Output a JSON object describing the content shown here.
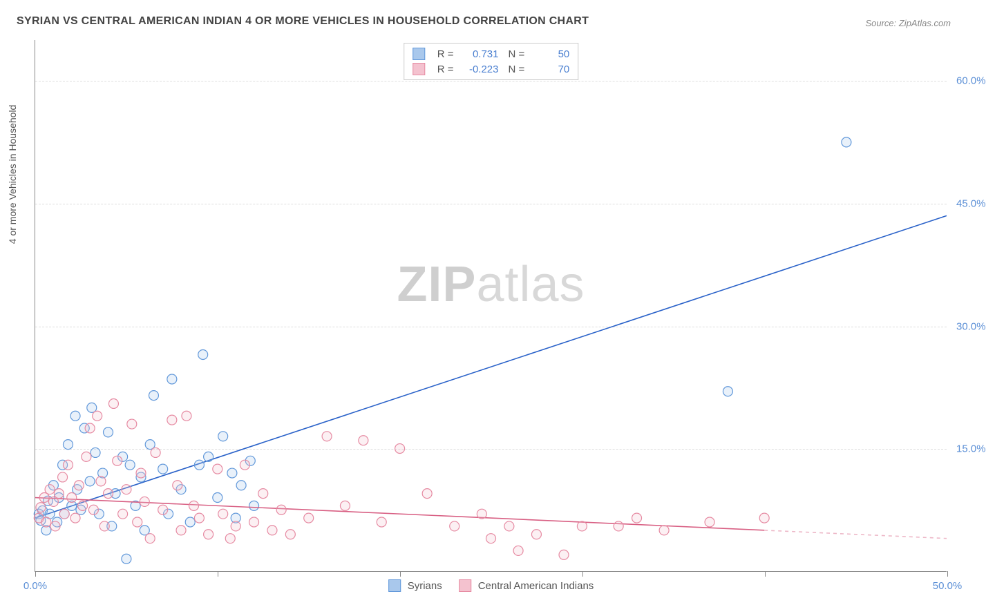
{
  "title": "SYRIAN VS CENTRAL AMERICAN INDIAN 4 OR MORE VEHICLES IN HOUSEHOLD CORRELATION CHART",
  "source": "Source: ZipAtlas.com",
  "y_axis_label": "4 or more Vehicles in Household",
  "watermark": {
    "part1": "ZIP",
    "part2": "atlas"
  },
  "chart": {
    "type": "scatter",
    "background_color": "#ffffff",
    "grid_color": "#dddddd",
    "axis_color": "#888888",
    "tick_label_color": "#5b8fd6",
    "xlim": [
      0,
      50
    ],
    "ylim": [
      0,
      65
    ],
    "x_ticks": [
      0,
      10,
      20,
      30,
      40,
      50
    ],
    "x_tick_labels": [
      "0.0%",
      "",
      "",
      "",
      "",
      "50.0%"
    ],
    "y_ticks": [
      15,
      30,
      45,
      60
    ],
    "y_tick_labels": [
      "15.0%",
      "30.0%",
      "45.0%",
      "60.0%"
    ],
    "marker_radius": 7,
    "marker_fill_opacity": 0.25,
    "line_width": 1.6,
    "series": [
      {
        "name": "Syrians",
        "color_fill": "#a9c8ec",
        "color_stroke": "#6198da",
        "line_color": "#2a62c9",
        "stats": {
          "R": "0.731",
          "N": "50"
        },
        "trend": {
          "x1": 0,
          "y1": 6.5,
          "x2": 50,
          "y2": 43.5,
          "dash_from_x": 50
        },
        "points": [
          [
            0.2,
            7.0
          ],
          [
            0.3,
            6.2
          ],
          [
            0.4,
            7.4
          ],
          [
            0.6,
            5.0
          ],
          [
            0.7,
            8.6
          ],
          [
            0.8,
            7.0
          ],
          [
            1.0,
            10.5
          ],
          [
            1.2,
            6.0
          ],
          [
            1.3,
            9.0
          ],
          [
            1.5,
            13.0
          ],
          [
            1.6,
            7.0
          ],
          [
            1.8,
            15.5
          ],
          [
            2.0,
            8.0
          ],
          [
            2.2,
            19.0
          ],
          [
            2.3,
            10.0
          ],
          [
            2.5,
            7.5
          ],
          [
            2.7,
            17.5
          ],
          [
            3.0,
            11.0
          ],
          [
            3.1,
            20.0
          ],
          [
            3.3,
            14.5
          ],
          [
            3.5,
            7.0
          ],
          [
            3.7,
            12.0
          ],
          [
            4.0,
            17.0
          ],
          [
            4.2,
            5.5
          ],
          [
            4.4,
            9.5
          ],
          [
            4.8,
            14.0
          ],
          [
            5.0,
            1.5
          ],
          [
            5.2,
            13.0
          ],
          [
            5.5,
            8.0
          ],
          [
            5.8,
            11.5
          ],
          [
            6.0,
            5.0
          ],
          [
            6.3,
            15.5
          ],
          [
            6.5,
            21.5
          ],
          [
            7.0,
            12.5
          ],
          [
            7.3,
            7.0
          ],
          [
            7.5,
            23.5
          ],
          [
            8.0,
            10.0
          ],
          [
            8.5,
            6.0
          ],
          [
            9.0,
            13.0
          ],
          [
            9.2,
            26.5
          ],
          [
            9.5,
            14.0
          ],
          [
            10.0,
            9.0
          ],
          [
            10.3,
            16.5
          ],
          [
            10.8,
            12.0
          ],
          [
            11.0,
            6.5
          ],
          [
            11.3,
            10.5
          ],
          [
            11.8,
            13.5
          ],
          [
            12.0,
            8.0
          ],
          [
            38.0,
            22.0
          ],
          [
            44.5,
            52.5
          ]
        ]
      },
      {
        "name": "Central American Indians",
        "color_fill": "#f4c2cf",
        "color_stroke": "#e68aa2",
        "line_color": "#d85f83",
        "stats": {
          "R": "-0.223",
          "N": "70"
        },
        "trend": {
          "x1": 0,
          "y1": 9.0,
          "x2": 50,
          "y2": 4.0,
          "dash_from_x": 40
        },
        "points": [
          [
            0.2,
            6.5
          ],
          [
            0.3,
            7.8
          ],
          [
            0.5,
            9.0
          ],
          [
            0.6,
            6.0
          ],
          [
            0.8,
            10.0
          ],
          [
            1.0,
            8.5
          ],
          [
            1.1,
            5.5
          ],
          [
            1.3,
            9.5
          ],
          [
            1.5,
            11.5
          ],
          [
            1.6,
            7.0
          ],
          [
            1.8,
            13.0
          ],
          [
            2.0,
            9.0
          ],
          [
            2.2,
            6.5
          ],
          [
            2.4,
            10.5
          ],
          [
            2.6,
            8.0
          ],
          [
            2.8,
            14.0
          ],
          [
            3.0,
            17.5
          ],
          [
            3.2,
            7.5
          ],
          [
            3.4,
            19.0
          ],
          [
            3.6,
            11.0
          ],
          [
            3.8,
            5.5
          ],
          [
            4.0,
            9.5
          ],
          [
            4.3,
            20.5
          ],
          [
            4.5,
            13.5
          ],
          [
            4.8,
            7.0
          ],
          [
            5.0,
            10.0
          ],
          [
            5.3,
            18.0
          ],
          [
            5.6,
            6.0
          ],
          [
            5.8,
            12.0
          ],
          [
            6.0,
            8.5
          ],
          [
            6.3,
            4.0
          ],
          [
            6.6,
            14.5
          ],
          [
            7.0,
            7.5
          ],
          [
            7.5,
            18.5
          ],
          [
            7.8,
            10.5
          ],
          [
            8.0,
            5.0
          ],
          [
            8.3,
            19.0
          ],
          [
            8.7,
            8.0
          ],
          [
            9.0,
            6.5
          ],
          [
            9.5,
            4.5
          ],
          [
            10.0,
            12.5
          ],
          [
            10.3,
            7.0
          ],
          [
            10.7,
            4.0
          ],
          [
            11.0,
            5.5
          ],
          [
            11.5,
            13.0
          ],
          [
            12.0,
            6.0
          ],
          [
            12.5,
            9.5
          ],
          [
            13.0,
            5.0
          ],
          [
            13.5,
            7.5
          ],
          [
            14.0,
            4.5
          ],
          [
            15.0,
            6.5
          ],
          [
            16.0,
            16.5
          ],
          [
            17.0,
            8.0
          ],
          [
            18.0,
            16.0
          ],
          [
            19.0,
            6.0
          ],
          [
            20.0,
            15.0
          ],
          [
            21.5,
            9.5
          ],
          [
            23.0,
            5.5
          ],
          [
            24.5,
            7.0
          ],
          [
            25.0,
            4.0
          ],
          [
            26.0,
            5.5
          ],
          [
            26.5,
            2.5
          ],
          [
            27.5,
            4.5
          ],
          [
            29.0,
            2.0
          ],
          [
            30.0,
            5.5
          ],
          [
            32.0,
            5.5
          ],
          [
            33.0,
            6.5
          ],
          [
            34.5,
            5.0
          ],
          [
            37.0,
            6.0
          ],
          [
            40.0,
            6.5
          ]
        ]
      }
    ]
  },
  "legend_top": {
    "r_label": "R =",
    "n_label": "N ="
  },
  "legend_bottom": {
    "items": [
      "Syrians",
      "Central American Indians"
    ]
  }
}
